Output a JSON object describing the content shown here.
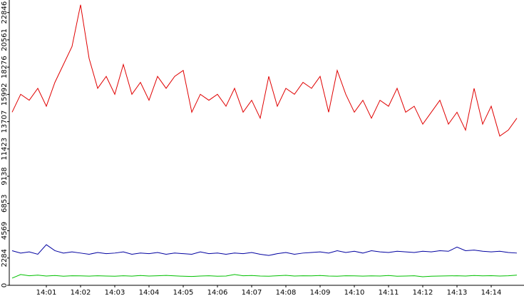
{
  "chart_data": {
    "type": "line",
    "categories": [
      null,
      null,
      null,
      null,
      "14:01",
      null,
      null,
      null,
      "14:02",
      null,
      null,
      null,
      "14:03",
      null,
      null,
      null,
      "14:04",
      null,
      null,
      null,
      "14:05",
      null,
      null,
      null,
      "14:06",
      null,
      null,
      null,
      "14:07",
      null,
      null,
      null,
      "14:08",
      null,
      null,
      null,
      "14:09",
      null,
      null,
      null,
      "14:10",
      null,
      null,
      null,
      "14:11",
      null,
      null,
      null,
      "14:12",
      null,
      null,
      null,
      "14:13",
      null,
      null,
      null,
      "14:14",
      null,
      null,
      null
    ],
    "series": [
      {
        "color": "#e00000",
        "values": [
          14500,
          16000,
          15500,
          16500,
          15000,
          17000,
          18500,
          20000,
          23500,
          19000,
          16500,
          17500,
          16000,
          18500,
          16000,
          17000,
          15500,
          17500,
          16500,
          17500,
          18000,
          14500,
          16000,
          15500,
          16000,
          15000,
          16500,
          14500,
          15500,
          14000,
          17500,
          15000,
          16500,
          16000,
          17000,
          16500,
          17500,
          14500,
          18000,
          16000,
          14500,
          15500,
          14000,
          15500,
          15000,
          16500,
          14500,
          15000,
          13500,
          14500,
          15500,
          13500,
          14500,
          13000,
          16500,
          13500,
          15000,
          12500,
          13000,
          14000
        ]
      },
      {
        "color": "#0000a0",
        "values": [
          2900,
          2700,
          2800,
          2600,
          3400,
          2900,
          2700,
          2800,
          2700,
          2600,
          2750,
          2650,
          2700,
          2800,
          2600,
          2700,
          2650,
          2750,
          2600,
          2700,
          2650,
          2600,
          2800,
          2650,
          2700,
          2600,
          2700,
          2650,
          2750,
          2600,
          2500,
          2650,
          2750,
          2600,
          2700,
          2750,
          2800,
          2700,
          2900,
          2750,
          2850,
          2700,
          2900,
          2800,
          2750,
          2850,
          2800,
          2750,
          2850,
          2800,
          2900,
          2850,
          3200,
          2900,
          2950,
          2850,
          2800,
          2850,
          2750,
          2700
        ]
      },
      {
        "color": "#00c000",
        "values": [
          600,
          900,
          800,
          850,
          780,
          820,
          760,
          800,
          790,
          770,
          800,
          780,
          760,
          800,
          770,
          820,
          780,
          800,
          830,
          790,
          760,
          740,
          780,
          800,
          760,
          780,
          900,
          800,
          820,
          780,
          760,
          800,
          840,
          780,
          800,
          790,
          820,
          780,
          760,
          800,
          790,
          770,
          790,
          780,
          820,
          760,
          780,
          800,
          720,
          760,
          780,
          790,
          800,
          780,
          820,
          790,
          810,
          780,
          800,
          850
        ]
      }
    ],
    "ylim": [
      0,
      23900
    ],
    "yticks": [
      0,
      2284,
      4569,
      6853,
      9138,
      11423,
      13707,
      15992,
      18276,
      20561,
      22846
    ]
  }
}
